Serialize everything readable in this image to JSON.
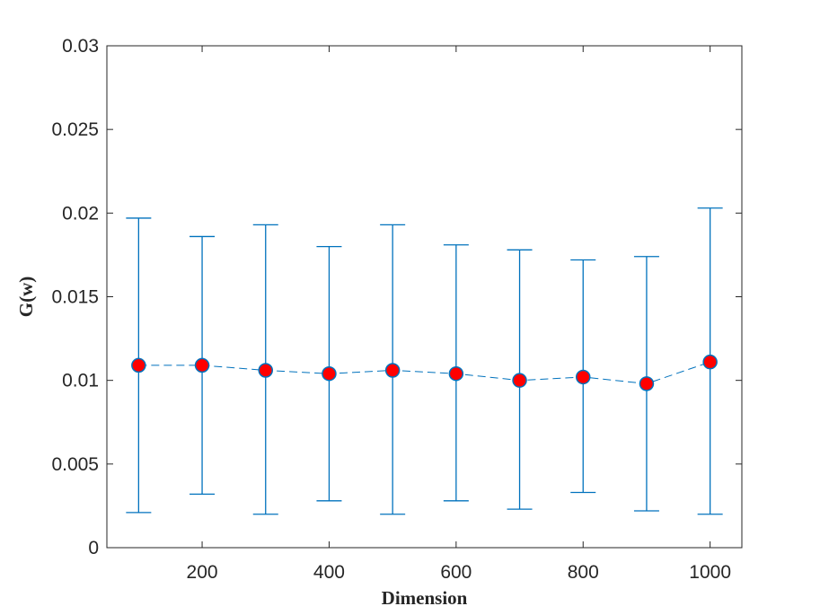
{
  "chart_data": {
    "type": "scatter",
    "title": "",
    "xlabel": "Dimension",
    "ylabel": "G(w)",
    "xlim": [
      50,
      1050
    ],
    "ylim": [
      0,
      0.03
    ],
    "xticks": [
      200,
      400,
      600,
      800,
      1000
    ],
    "xtick_labels": [
      "200",
      "400",
      "600",
      "800",
      "1000"
    ],
    "yticks": [
      0,
      0.005,
      0.01,
      0.015,
      0.02,
      0.025,
      0.03
    ],
    "ytick_labels": [
      "0",
      "0.005",
      "0.01",
      "0.015",
      "0.02",
      "0.025",
      "0.03"
    ],
    "grid": false,
    "series": [
      {
        "x": [
          100,
          200,
          300,
          400,
          500,
          600,
          700,
          800,
          900,
          1000
        ],
        "y": [
          0.0109,
          0.0109,
          0.0106,
          0.0104,
          0.0106,
          0.0104,
          0.01,
          0.0102,
          0.0098,
          0.0111
        ],
        "y_lower": [
          0.0021,
          0.0032,
          0.002,
          0.0028,
          0.002,
          0.0028,
          0.0023,
          0.0033,
          0.0022,
          0.002
        ],
        "y_upper": [
          0.0197,
          0.0186,
          0.0193,
          0.018,
          0.0193,
          0.0181,
          0.0178,
          0.0172,
          0.0174,
          0.0203
        ]
      }
    ],
    "colors": {
      "errorbar": "#0072bd",
      "marker_fill": "#ff0000",
      "marker_edge": "#0072bd",
      "line": "#0072bd",
      "axes": "#262626"
    }
  }
}
